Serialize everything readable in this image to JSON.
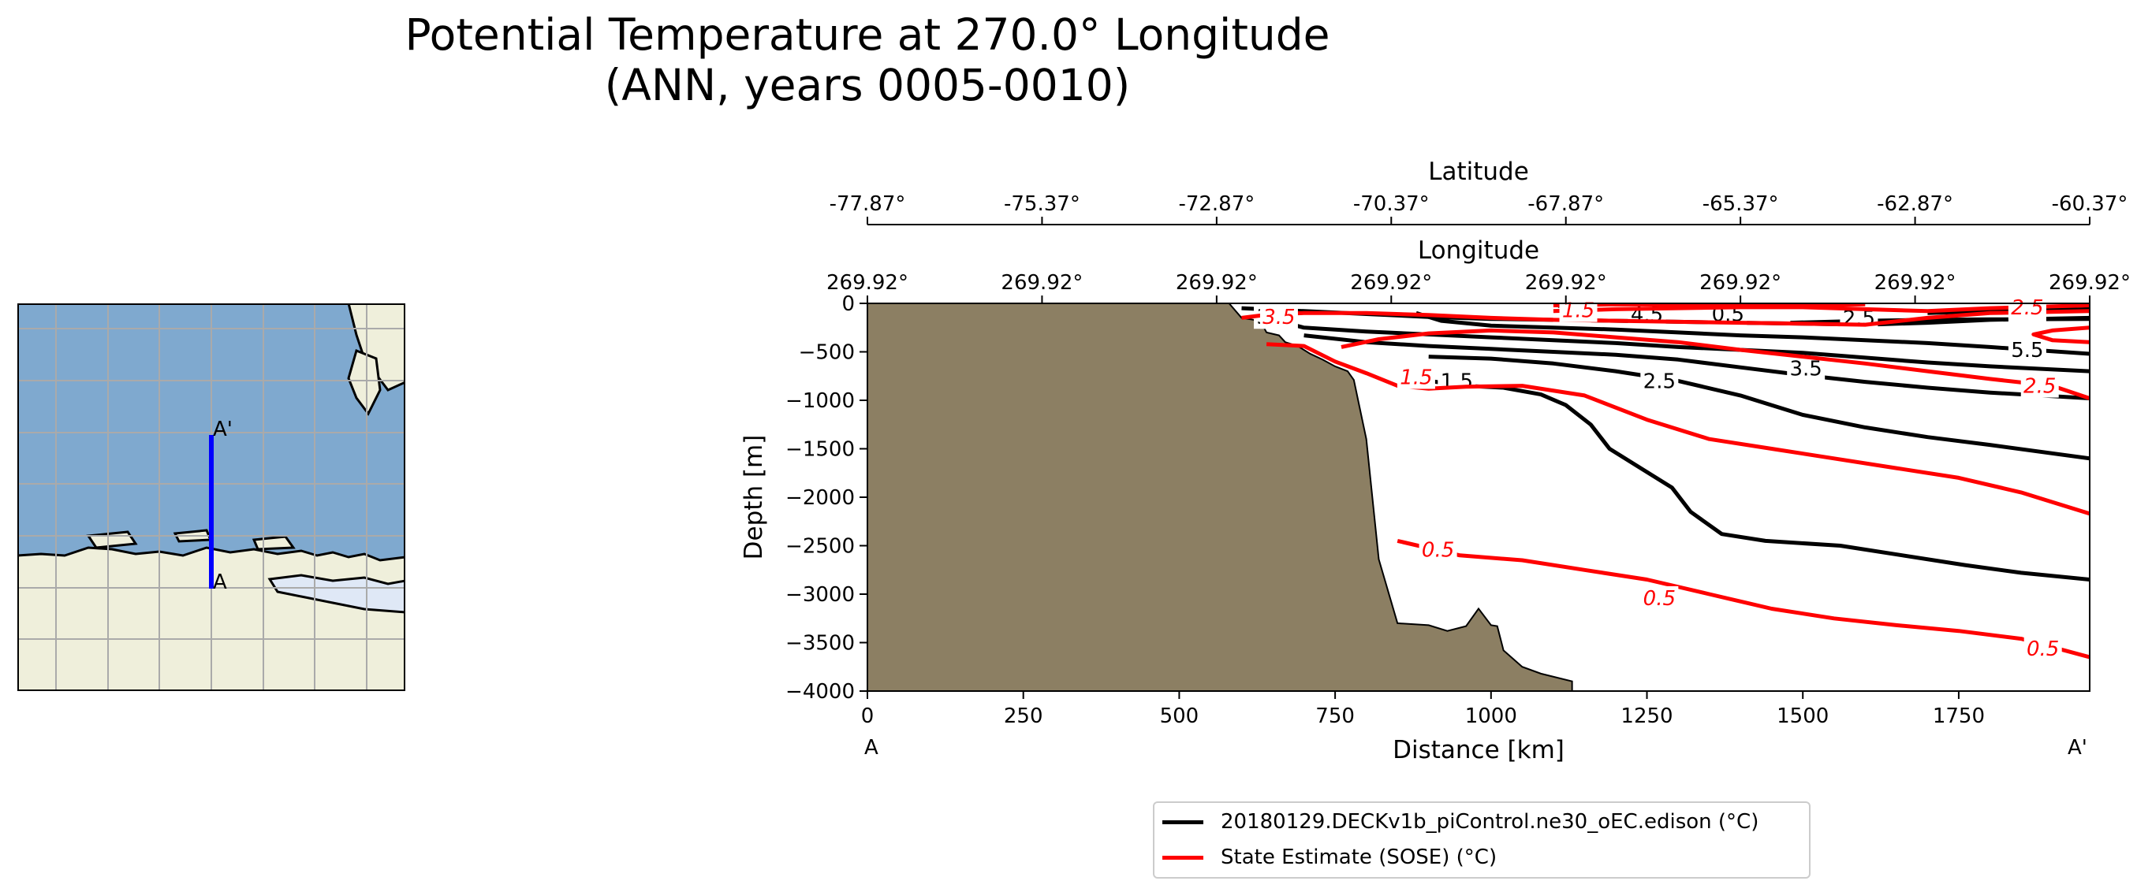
{
  "figure": {
    "title": "Potential Temperature at 270.0° Longitude\n(ANN, years 0005-0010)"
  },
  "inset_map": {
    "start_label": "A",
    "end_label": "A'",
    "colors": {
      "ocean": "#7fa9cf",
      "land": "#efefdb",
      "transect": "#0000ff",
      "grid": "#aaaaaa"
    }
  },
  "chart_data": {
    "type": "line",
    "subtype": "contour-section",
    "title": "",
    "xlabel": "Distance [km]",
    "ylabel": "Depth [m]",
    "xlim": [
      0,
      1960
    ],
    "ylim": [
      -4000,
      0
    ],
    "x_ticks": [
      0,
      250,
      500,
      750,
      1000,
      1250,
      1500,
      1750
    ],
    "y_ticks": [
      0,
      -500,
      -1000,
      -1500,
      -2000,
      -2500,
      -3000,
      -3500,
      -4000
    ],
    "x_tick_labels": [
      "0",
      "250",
      "500",
      "750",
      "1000",
      "1250",
      "1500",
      "1750"
    ],
    "y_tick_labels": [
      "0",
      "−500",
      "−1000",
      "−1500",
      "−2000",
      "−2500",
      "−3000",
      "−3500",
      "−4000"
    ],
    "section_end_labels": {
      "start": "A",
      "end": "A'"
    },
    "top_axes": [
      {
        "label": "Longitude",
        "tick_positions_km": [
          0,
          280,
          560,
          840,
          1120,
          1400,
          1680,
          1960
        ],
        "tick_labels": [
          "269.92°",
          "269.92°",
          "269.92°",
          "269.92°",
          "269.92°",
          "269.92°",
          "269.92°",
          "269.92°"
        ]
      },
      {
        "label": "Latitude",
        "tick_positions_km": [
          0,
          280,
          560,
          840,
          1120,
          1400,
          1680,
          1960
        ],
        "tick_labels": [
          "-77.87°",
          "-75.37°",
          "-72.87°",
          "-70.37°",
          "-67.87°",
          "-65.37°",
          "-62.87°",
          "-60.37°"
        ]
      }
    ],
    "bathymetry": {
      "color": "#8c7f63",
      "seafloor_depth": [
        [
          580,
          0
        ],
        [
          600,
          -150
        ],
        [
          630,
          -180
        ],
        [
          640,
          -300
        ],
        [
          660,
          -330
        ],
        [
          670,
          -400
        ],
        [
          690,
          -440
        ],
        [
          710,
          -520
        ],
        [
          730,
          -580
        ],
        [
          750,
          -650
        ],
        [
          770,
          -700
        ],
        [
          780,
          -790
        ],
        [
          800,
          -1400
        ],
        [
          820,
          -2640
        ],
        [
          850,
          -3300
        ],
        [
          900,
          -3320
        ],
        [
          930,
          -3380
        ],
        [
          960,
          -3330
        ],
        [
          980,
          -3150
        ],
        [
          1000,
          -3320
        ],
        [
          1010,
          -3330
        ],
        [
          1020,
          -3580
        ],
        [
          1050,
          -3750
        ],
        [
          1080,
          -3820
        ],
        [
          1130,
          -3900
        ]
      ]
    },
    "series": [
      {
        "name": "20180129.DECKv1b_piControl.ne30_oEC.edison (°C)",
        "color": "#000000",
        "contours": [
          {
            "level": "0.5",
            "points": [
              [
                1480,
                -200
              ],
              [
                1600,
                -180
              ],
              [
                1700,
                -170
              ],
              [
                1800,
                -165
              ],
              [
                1960,
                -160
              ]
            ]
          },
          {
            "level": "1.5",
            "points": [
              [
                860,
                -750
              ],
              [
                900,
                -800
              ],
              [
                960,
                -850
              ],
              [
                1020,
                -870
              ],
              [
                1080,
                -940
              ],
              [
                1120,
                -1050
              ],
              [
                1160,
                -1250
              ],
              [
                1190,
                -1500
              ],
              [
                1240,
                -1700
              ],
              [
                1290,
                -1900
              ],
              [
                1320,
                -2150
              ],
              [
                1370,
                -2380
              ],
              [
                1440,
                -2450
              ],
              [
                1560,
                -2500
              ],
              [
                1660,
                -2600
              ],
              [
                1760,
                -2700
              ],
              [
                1850,
                -2780
              ],
              [
                1960,
                -2850
              ]
            ]
          },
          {
            "level": "2.5",
            "points": [
              [
                900,
                -550
              ],
              [
                1000,
                -570
              ],
              [
                1100,
                -620
              ],
              [
                1200,
                -700
              ],
              [
                1300,
                -800
              ],
              [
                1400,
                -950
              ],
              [
                1500,
                -1150
              ],
              [
                1600,
                -1280
              ],
              [
                1700,
                -1380
              ],
              [
                1800,
                -1460
              ],
              [
                1960,
                -1600
              ]
            ]
          },
          {
            "level": "3.5",
            "points": [
              [
                700,
                -330
              ],
              [
                800,
                -400
              ],
              [
                900,
                -440
              ],
              [
                1000,
                -470
              ],
              [
                1100,
                -500
              ],
              [
                1200,
                -530
              ],
              [
                1300,
                -580
              ],
              [
                1400,
                -660
              ],
              [
                1500,
                -740
              ],
              [
                1600,
                -810
              ],
              [
                1700,
                -870
              ],
              [
                1800,
                -920
              ],
              [
                1960,
                -980
              ]
            ]
          },
          {
            "level": "4.5",
            "points": [
              [
                640,
                -150
              ],
              [
                700,
                -250
              ],
              [
                800,
                -290
              ],
              [
                900,
                -320
              ],
              [
                1000,
                -350
              ],
              [
                1100,
                -380
              ],
              [
                1200,
                -410
              ],
              [
                1300,
                -450
              ],
              [
                1400,
                -480
              ],
              [
                1500,
                -510
              ],
              [
                1600,
                -560
              ],
              [
                1700,
                -610
              ],
              [
                1800,
                -650
              ],
              [
                1960,
                -700
              ]
            ]
          },
          {
            "level": "5.5",
            "points": [
              [
                880,
                -100
              ],
              [
                920,
                -180
              ],
              [
                1000,
                -230
              ],
              [
                1100,
                -250
              ],
              [
                1200,
                -270
              ],
              [
                1300,
                -300
              ],
              [
                1400,
                -330
              ],
              [
                1500,
                -350
              ],
              [
                1600,
                -380
              ],
              [
                1700,
                -410
              ],
              [
                1800,
                -450
              ],
              [
                1960,
                -520
              ]
            ]
          },
          {
            "level": "2.5",
            "points": [
              [
                600,
                -50
              ],
              [
                700,
                -80
              ],
              [
                800,
                -110
              ],
              [
                900,
                -140
              ],
              [
                1000,
                -160
              ],
              [
                1100,
                -170
              ],
              [
                1200,
                -180
              ],
              [
                1300,
                -190
              ],
              [
                1400,
                -200
              ],
              [
                1500,
                -210
              ],
              [
                1600,
                -220
              ],
              [
                1700,
                -200
              ],
              [
                1800,
                -170
              ],
              [
                1960,
                -150
              ]
            ]
          },
          {
            "level": "2.5",
            "points": [
              [
                1700,
                -100
              ],
              [
                1800,
                -80
              ],
              [
                1960,
                -60
              ]
            ]
          }
        ],
        "labels": [
          {
            "text": "0.5",
            "x": 1380,
            "y": -110
          },
          {
            "text": "1.5",
            "x": 945,
            "y": -800
          },
          {
            "text": "2.5",
            "x": 1270,
            "y": -800
          },
          {
            "text": "3.5",
            "x": 1505,
            "y": -670
          },
          {
            "text": "4.5",
            "x": 1250,
            "y": -115
          },
          {
            "text": "5.5",
            "x": 1860,
            "y": -480
          },
          {
            "text": "2.5",
            "x": 1590,
            "y": -150
          },
          {
            "text": "2.5",
            "x": 1860,
            "y": -80
          },
          {
            "text": "3.5",
            "x": 650,
            "y": -140
          },
          {
            "text": "1.5",
            "x": 1130,
            "y": -100
          }
        ]
      },
      {
        "name": "State Estimate (SOSE) (°C)",
        "color": "#ff0000",
        "contours": [
          {
            "level": "0.5",
            "points": [
              [
                850,
                -2450
              ],
              [
                950,
                -2600
              ],
              [
                1050,
                -2650
              ],
              [
                1150,
                -2750
              ],
              [
                1250,
                -2850
              ],
              [
                1350,
                -3000
              ],
              [
                1450,
                -3150
              ],
              [
                1550,
                -3250
              ],
              [
                1650,
                -3320
              ],
              [
                1750,
                -3380
              ],
              [
                1850,
                -3460
              ],
              [
                1960,
                -3650
              ]
            ]
          },
          {
            "level": "1.5",
            "points": [
              [
                640,
                -420
              ],
              [
                700,
                -440
              ],
              [
                750,
                -600
              ],
              [
                800,
                -720
              ],
              [
                850,
                -850
              ],
              [
                900,
                -880
              ],
              [
                960,
                -860
              ],
              [
                1050,
                -850
              ],
              [
                1150,
                -950
              ],
              [
                1250,
                -1200
              ],
              [
                1350,
                -1400
              ],
              [
                1450,
                -1500
              ],
              [
                1550,
                -1600
              ],
              [
                1650,
                -1700
              ],
              [
                1750,
                -1800
              ],
              [
                1850,
                -1950
              ],
              [
                1960,
                -2170
              ]
            ]
          },
          {
            "level": "2.5",
            "points": [
              [
                760,
                -450
              ],
              [
                820,
                -370
              ],
              [
                900,
                -310
              ],
              [
                1000,
                -280
              ],
              [
                1100,
                -300
              ],
              [
                1200,
                -350
              ],
              [
                1300,
                -400
              ],
              [
                1400,
                -480
              ],
              [
                1500,
                -550
              ],
              [
                1600,
                -620
              ],
              [
                1700,
                -700
              ],
              [
                1800,
                -780
              ],
              [
                1900,
                -850
              ],
              [
                1960,
                -980
              ]
            ]
          },
          {
            "level": "2.5",
            "points": [
              [
                1960,
                -250
              ],
              [
                1900,
                -280
              ],
              [
                1870,
                -320
              ],
              [
                1900,
                -380
              ],
              [
                1960,
                -400
              ]
            ]
          },
          {
            "level": "3.5",
            "points": [
              [
                600,
                -150
              ],
              [
                650,
                -110
              ],
              [
                700,
                -100
              ],
              [
                800,
                -100
              ],
              [
                900,
                -120
              ],
              [
                1000,
                -150
              ],
              [
                1100,
                -170
              ],
              [
                1200,
                -180
              ],
              [
                1300,
                -190
              ],
              [
                1400,
                -200
              ],
              [
                1500,
                -210
              ],
              [
                1600,
                -220
              ],
              [
                1700,
                -150
              ],
              [
                1800,
                -100
              ],
              [
                1960,
                -80
              ]
            ]
          },
          {
            "level": "4.5",
            "points": [
              [
                1100,
                -80
              ],
              [
                1200,
                -60
              ],
              [
                1300,
                -50
              ],
              [
                1400,
                -40
              ],
              [
                1500,
                -40
              ],
              [
                1600,
                -60
              ],
              [
                1700,
                -80
              ],
              [
                1800,
                -50
              ],
              [
                1960,
                -20
              ]
            ]
          },
          {
            "level": "1.5",
            "points": [
              [
                1100,
                -20
              ],
              [
                1200,
                -10
              ],
              [
                1300,
                -15
              ],
              [
                1400,
                -25
              ],
              [
                1500,
                -20
              ],
              [
                1600,
                -10
              ]
            ]
          }
        ],
        "labels": [
          {
            "text": "0.5",
            "x": 915,
            "y": -2540
          },
          {
            "text": "0.5",
            "x": 1270,
            "y": -3040
          },
          {
            "text": "0.5",
            "x": 1885,
            "y": -3560
          },
          {
            "text": "1.5",
            "x": 880,
            "y": -760
          },
          {
            "text": "2.5",
            "x": 1880,
            "y": -850
          },
          {
            "text": "3.5",
            "x": 660,
            "y": -140
          },
          {
            "text": "1.5",
            "x": 1140,
            "y": -70
          },
          {
            "text": "2.5",
            "x": 1860,
            "y": -40
          }
        ]
      }
    ],
    "legend_position": "bottom-center"
  }
}
